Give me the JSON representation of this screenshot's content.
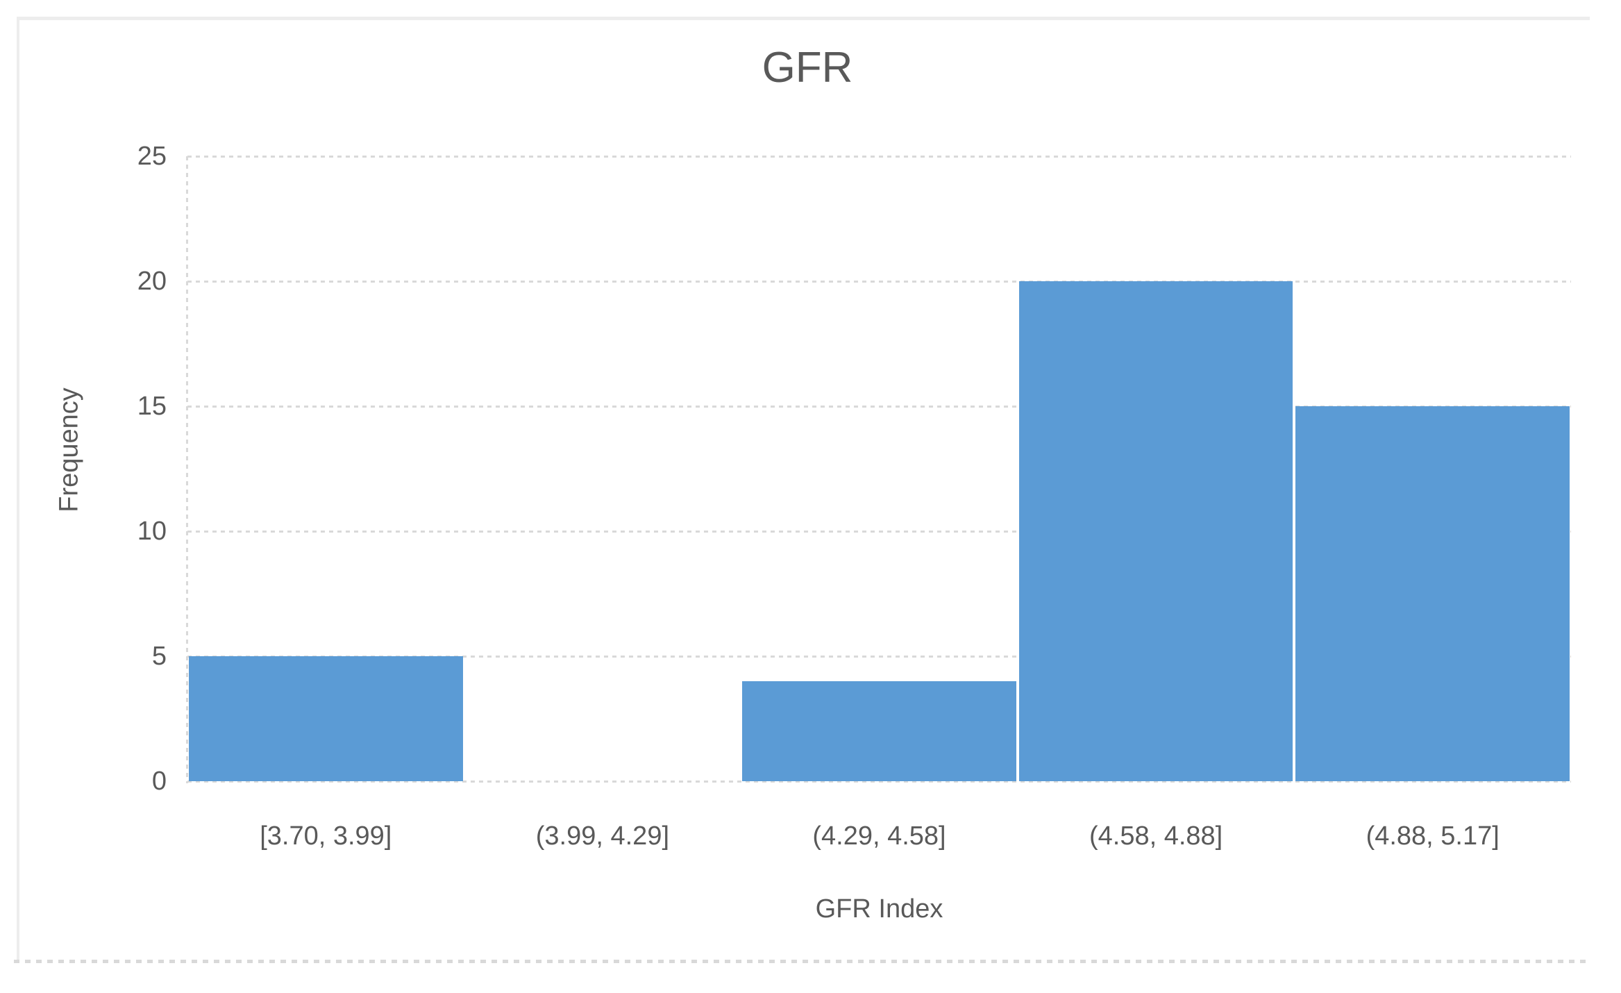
{
  "chart_data": {
    "type": "bar",
    "title": "GFR",
    "xlabel": "GFR Index",
    "ylabel": "Frequency",
    "categories": [
      "[3.70, 3.99]",
      "(3.99, 4.29]",
      "(4.29, 4.58]",
      "(4.58, 4.88]",
      "(4.88, 5.17]"
    ],
    "values": [
      5,
      0,
      4,
      20,
      15
    ],
    "ylim": [
      0,
      25
    ],
    "yticks": [
      0,
      5,
      10,
      15,
      20,
      25
    ],
    "grid": true,
    "legend": "none",
    "bar_color": "#5B9BD5",
    "gridline_color": "#D9D9D9",
    "frame_color": "#EDEDED",
    "text_color": "#595959"
  }
}
